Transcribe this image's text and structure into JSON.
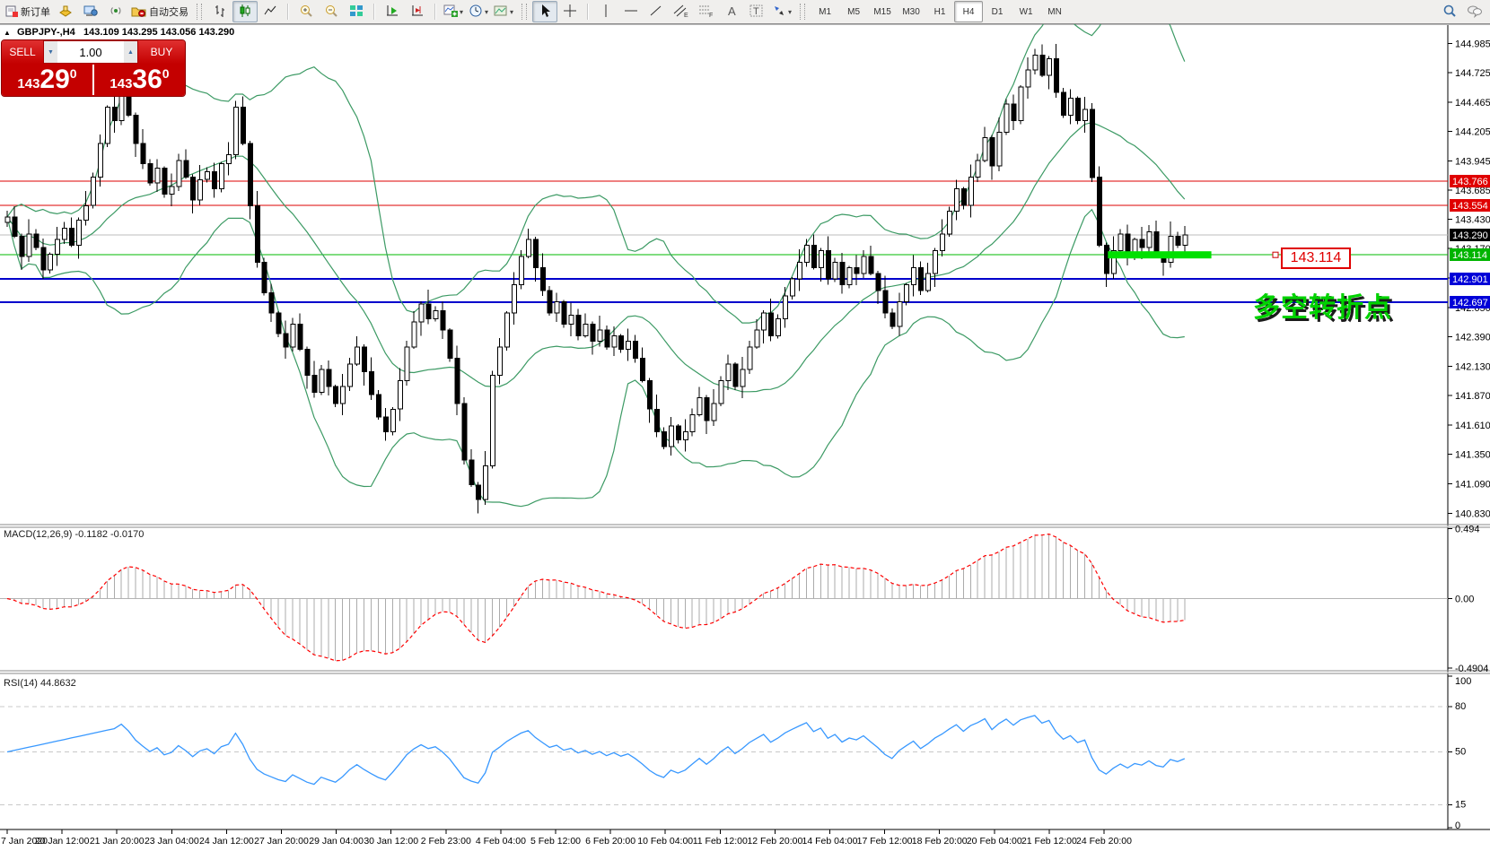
{
  "toolbar": {
    "new_order_label": "新订单",
    "autotrading_label": "自动交易",
    "timeframes": [
      "M1",
      "M5",
      "M15",
      "M30",
      "H1",
      "H4",
      "D1",
      "W1",
      "MN"
    ],
    "active_timeframe": "H4"
  },
  "chart": {
    "title": "GBPJPY-,H4",
    "ohlc_text": "143.109 143.295 143.056 143.290",
    "collapse_glyph": "▲"
  },
  "one_click": {
    "sell_label": "SELL",
    "buy_label": "BUY",
    "volume": "1.00",
    "sell_big_figure": "143",
    "sell_pips": "29",
    "sell_point": "0",
    "buy_big_figure": "143",
    "buy_pips": "36",
    "buy_point": "0"
  },
  "annotation": {
    "text": "多空转折点",
    "price_label": "143.114"
  },
  "indicators": {
    "macd_label": "MACD(12,26,9) -0.1182 -0.0170",
    "rsi_label": "RSI(14) 44.8632"
  },
  "chart_data": {
    "type": "candlestick",
    "symbol": "GBPJPY-",
    "period": "H4",
    "title_ohlc": {
      "open": "143.109",
      "high": "143.295",
      "low": "143.056",
      "close": "143.290"
    },
    "y_ticks": [
      "144.985",
      "144.725",
      "144.465",
      "144.205",
      "143.945",
      "143.685",
      "143.430",
      "143.170",
      "142.910",
      "142.650",
      "142.390",
      "142.130",
      "141.870",
      "141.610",
      "141.350",
      "141.090",
      "140.830"
    ],
    "y_range": [
      140.745,
      145.13
    ],
    "x_labels": [
      "7 Jan 2020",
      "20 Jan 12:00",
      "21 Jan 20:00",
      "23 Jan 04:00",
      "24 Jan 12:00",
      "27 Jan 20:00",
      "29 Jan 04:00",
      "30 Jan 12:00",
      "2 Feb 23:00",
      "4 Feb 04:00",
      "5 Feb 12:00",
      "6 Feb 20:00",
      "10 Feb 04:00",
      "11 Feb 12:00",
      "12 Feb 20:00",
      "14 Feb 04:00",
      "17 Feb 12:00",
      "18 Feb 20:00",
      "20 Feb 04:00",
      "21 Feb 12:00",
      "24 Feb 20:00"
    ],
    "closes": [
      143.45,
      143.28,
      143.1,
      143.3,
      143.18,
      142.98,
      143.12,
      143.25,
      143.35,
      143.2,
      143.42,
      143.55,
      143.8,
      144.1,
      144.42,
      144.3,
      144.52,
      144.35,
      144.1,
      143.92,
      143.75,
      143.88,
      143.65,
      143.72,
      143.95,
      143.8,
      143.6,
      143.78,
      143.85,
      143.7,
      143.92,
      144.0,
      144.42,
      144.1,
      143.55,
      143.05,
      142.78,
      142.6,
      142.42,
      142.3,
      142.5,
      142.28,
      142.05,
      141.9,
      142.1,
      141.95,
      141.8,
      141.95,
      142.15,
      142.3,
      142.08,
      141.88,
      141.68,
      141.55,
      141.75,
      142.0,
      142.3,
      142.52,
      142.68,
      142.55,
      142.62,
      142.45,
      142.2,
      141.8,
      141.3,
      141.08,
      140.95,
      141.25,
      142.05,
      142.3,
      142.6,
      142.85,
      143.1,
      143.25,
      143.0,
      142.8,
      142.6,
      142.7,
      142.5,
      142.58,
      142.4,
      142.5,
      142.35,
      142.45,
      142.3,
      142.4,
      142.28,
      142.35,
      142.2,
      142.0,
      141.75,
      141.55,
      141.42,
      141.6,
      141.48,
      141.55,
      141.7,
      141.85,
      141.65,
      141.8,
      142.0,
      142.15,
      141.95,
      142.1,
      142.3,
      142.45,
      142.6,
      142.4,
      142.55,
      142.75,
      142.9,
      143.05,
      143.2,
      143.0,
      143.15,
      142.9,
      143.05,
      142.85,
      143.0,
      142.95,
      143.1,
      142.95,
      142.8,
      142.6,
      142.48,
      142.7,
      142.85,
      143.0,
      142.8,
      142.95,
      143.15,
      143.3,
      143.5,
      143.7,
      143.55,
      143.8,
      143.95,
      144.15,
      143.9,
      144.2,
      144.45,
      144.3,
      144.6,
      144.75,
      144.88,
      144.7,
      144.85,
      144.55,
      144.35,
      144.5,
      144.3,
      144.4,
      143.8,
      143.2,
      142.95,
      143.15,
      143.3,
      143.1,
      143.25,
      143.18,
      143.32,
      143.12,
      143.05,
      143.28,
      143.2,
      143.29
    ],
    "price_lines": [
      {
        "price": 143.766,
        "color": "#dd0000",
        "width": 1,
        "badge": "143.766",
        "badge_bg": "#e00000"
      },
      {
        "price": 143.554,
        "color": "#dd0000",
        "width": 1,
        "badge": "143.554",
        "badge_bg": "#e00000"
      },
      {
        "price": 143.29,
        "color": "#bcbcbc",
        "width": 1,
        "badge": "143.290",
        "badge_bg": "#000000"
      },
      {
        "price": 143.114,
        "color": "#00bb00",
        "width": 1,
        "badge": "143.114",
        "badge_bg": "#00b400"
      },
      {
        "price": 142.901,
        "color": "#0000cc",
        "width": 2,
        "badge": "142.901",
        "badge_bg": "#0000d8"
      },
      {
        "price": 142.697,
        "color": "#0000cc",
        "width": 2,
        "badge": "142.697",
        "badge_bg": "#0000d8"
      }
    ],
    "thick_segment": {
      "price": 143.114,
      "from_index": 154.5,
      "to_index": 169,
      "color": "#00e000"
    },
    "bollinger": {
      "period": 20,
      "deviation": 2,
      "color": "#3c9a64"
    },
    "macd": {
      "fast": 12,
      "slow": 26,
      "signal_period": 9,
      "value": -0.1182,
      "signal_value": -0.017,
      "scale": [
        {
          "v": 0.494,
          "label": "0.494"
        },
        {
          "v": 0,
          "label": "0.00"
        },
        {
          "v": -0.4904,
          "label": "-0.4904"
        }
      ],
      "histogram_color": "#ababab",
      "signal_color": "#ff0000"
    },
    "rsi": {
      "period": 14,
      "value": 44.8632,
      "color": "#3898ff",
      "scale": [
        {
          "v": 100,
          "label": "100"
        },
        {
          "v": 80,
          "label": "80"
        },
        {
          "v": 50,
          "label": "50"
        },
        {
          "v": 15,
          "label": "15"
        },
        {
          "v": 0,
          "label": "0"
        }
      ],
      "dashed_levels": [
        80,
        50,
        15
      ]
    }
  }
}
